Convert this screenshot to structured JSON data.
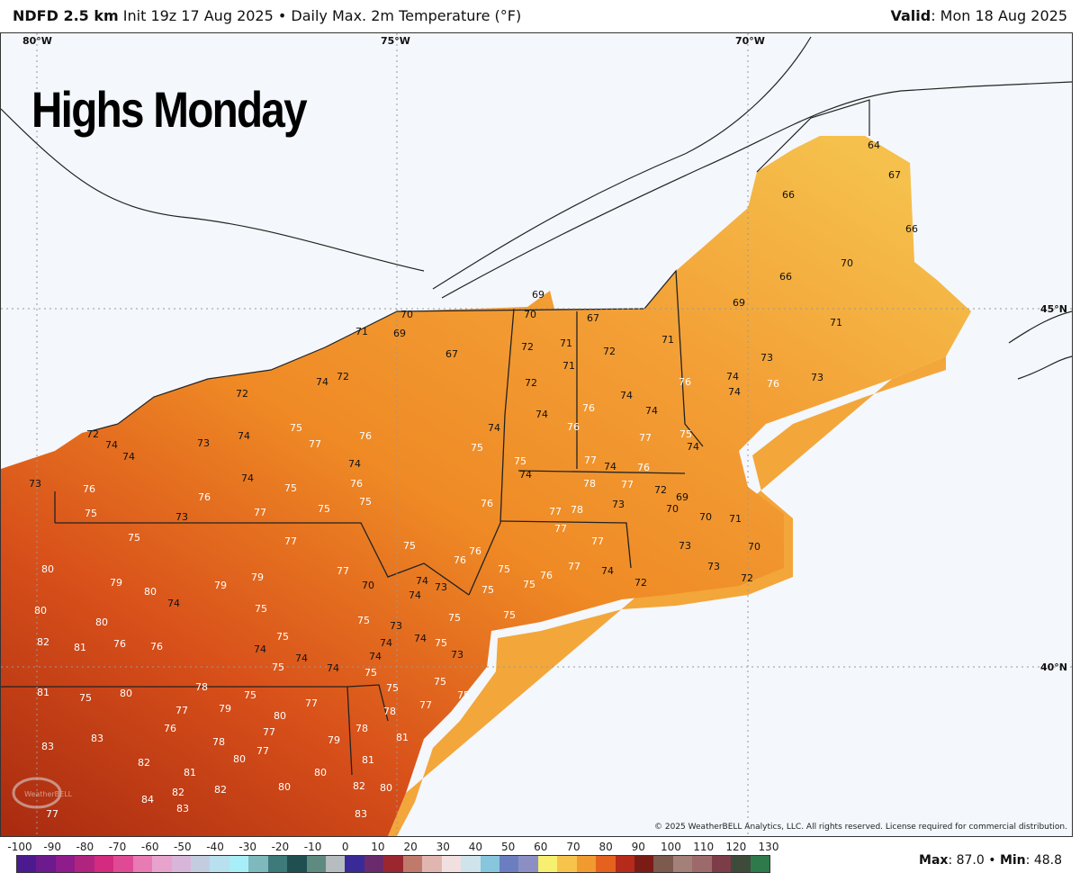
{
  "header": {
    "model": "NDFD 2.5 km",
    "init": "Init 19z 17 Aug 2025",
    "separator": "•",
    "product": "Daily Max. 2m Temperature (°F)",
    "valid_label": "Valid",
    "valid_value": ": Mon 18 Aug 2025"
  },
  "overlay_title": "Highs Monday",
  "gridlines": {
    "lon": [
      "80°W",
      "75°W",
      "70°W"
    ],
    "lat": [
      "45°N",
      "40°N"
    ]
  },
  "copyright": "© 2025 WeatherBELL Analytics, LLC. All rights reserved. License required for commercial distribution.",
  "logo_text": "WeatherBELL",
  "colorbar": {
    "ticks": [
      "-100",
      "-90",
      "-80",
      "-70",
      "-60",
      "-50",
      "-40",
      "-30",
      "-20",
      "-10",
      "0",
      "10",
      "20",
      "30",
      "40",
      "50",
      "60",
      "70",
      "80",
      "90",
      "100",
      "110",
      "120",
      "130"
    ],
    "colors": [
      "#4b1a8e",
      "#6c1a8e",
      "#8e1c8a",
      "#b0247f",
      "#d22b7f",
      "#e04a95",
      "#e87ab4",
      "#e8a3cc",
      "#d7b6d9",
      "#c4cde0",
      "#b8e0ee",
      "#a7eef8",
      "#7fb8bd",
      "#3d7a7a",
      "#204f50",
      "#5f8a80",
      "#b6bcc0",
      "#3a2a98",
      "#6b2a6c",
      "#9b2630",
      "#c07a6c",
      "#e2b6b0",
      "#f1e0df",
      "#cfe3ea",
      "#88c6de",
      "#6b7fc0",
      "#8b8fc4",
      "#f6ef70",
      "#f7c34b",
      "#f19a30",
      "#e5611e",
      "#b52a1a",
      "#7a1c15",
      "#7c5a4e",
      "#a38078",
      "#9d6a6c",
      "#7c3c48",
      "#3e4a3a",
      "#2f7a4a"
    ],
    "unit": "°F"
  },
  "stats": {
    "max_label": "Max",
    "max_value": "87.0",
    "sep": "•",
    "min_label": "Min",
    "min_value": "48.8"
  },
  "colors": {
    "cool": "#f5b844",
    "mid": "#ef8a25",
    "warm": "#d8501a",
    "hot": "#a82a10",
    "water": "#f4f7fb",
    "offshore": "#f3a63a"
  },
  "temperature_labels": [
    "64",
    "67",
    "66",
    "66",
    "70",
    "66",
    "69",
    "71",
    "69",
    "70",
    "70",
    "67",
    "69",
    "71",
    "71",
    "72",
    "71",
    "72",
    "71",
    "67",
    "73",
    "72",
    "74",
    "72",
    "72",
    "74",
    "76",
    "73",
    "74",
    "76",
    "74",
    "74",
    "74",
    "76",
    "74",
    "76",
    "72",
    "74",
    "74",
    "73",
    "74",
    "75",
    "77",
    "76",
    "75",
    "77",
    "74",
    "75",
    "74",
    "75",
    "77",
    "74",
    "76",
    "74",
    "73",
    "76",
    "74",
    "75",
    "76",
    "78",
    "77",
    "72",
    "76",
    "75",
    "76",
    "73",
    "70",
    "69",
    "75",
    "73",
    "77",
    "75",
    "77",
    "78",
    "70",
    "71",
    "75",
    "77",
    "75",
    "77",
    "77",
    "76",
    "76",
    "73",
    "70",
    "80",
    "79",
    "79",
    "77",
    "75",
    "76",
    "77",
    "74",
    "72",
    "73",
    "72",
    "74",
    "80",
    "79",
    "70",
    "74",
    "73",
    "75",
    "75",
    "74",
    "80",
    "75",
    "80",
    "75",
    "73",
    "75",
    "75",
    "82",
    "81",
    "76",
    "76",
    "75",
    "74",
    "74",
    "75",
    "73",
    "74",
    "75",
    "74",
    "74",
    "74",
    "75",
    "78",
    "81",
    "75",
    "80",
    "75",
    "75",
    "75",
    "75",
    "77",
    "79",
    "77",
    "77",
    "80",
    "77",
    "76",
    "78",
    "78",
    "83",
    "78",
    "77",
    "79",
    "81",
    "83",
    "80",
    "81",
    "82",
    "80",
    "81",
    "80",
    "82",
    "80",
    "84",
    "82",
    "82",
    "83",
    "83",
    "77"
  ]
}
